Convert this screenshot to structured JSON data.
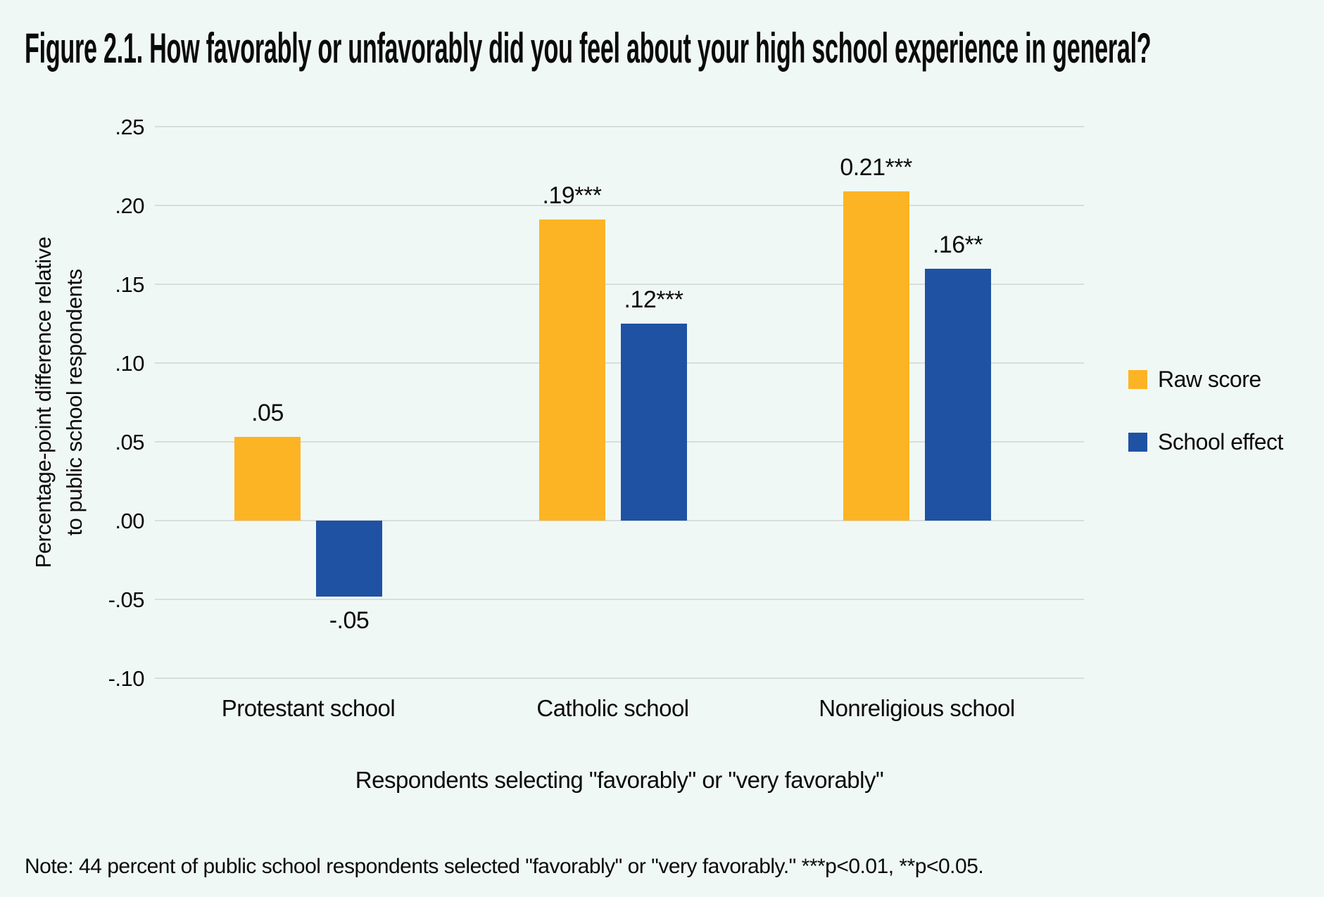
{
  "title": "Figure 2.1. How favorably or unfavorably did you feel about your high school experience in general?",
  "note": "Note: 44 percent of public school respondents selected \"favorably\" or \"very favorably.\" ***p<0.01, **p<0.05.",
  "colors": {
    "background": "#F0F8F6",
    "raw_score": "#FCB424",
    "school_effect": "#1F52A3",
    "gridline": "#D8DDDB",
    "text": "#0B0B0B"
  },
  "chart_data": {
    "type": "bar",
    "title": "Figure 2.1. How favorably or unfavorably did you feel about your high school experience in general?",
    "categories": [
      "Protestant school",
      "Catholic school",
      "Nonreligious school"
    ],
    "series": [
      {
        "name": "Raw score",
        "values": [
          0.053,
          0.191,
          0.209
        ],
        "labels": [
          ".05",
          ".19***",
          "0.21***"
        ],
        "color": "#FCB424"
      },
      {
        "name": "School effect",
        "values": [
          -0.048,
          0.125,
          0.16
        ],
        "labels": [
          "-.05",
          ".12***",
          ".16**"
        ],
        "color": "#1F52A3"
      }
    ],
    "ylabel_line1": "Percentage-point difference relative",
    "ylabel_line2": "to public school respondents",
    "xlabel": "Respondents selecting \"favorably\" or \"very favorably\"",
    "yticks": [
      0.25,
      0.2,
      0.15,
      0.1,
      0.05,
      0.0,
      -0.05,
      -0.1
    ],
    "ytick_labels": [
      ".25",
      ".20",
      ".15",
      ".10",
      ".05",
      ".00",
      "-.05",
      "-.10"
    ],
    "ylim": [
      -0.1,
      0.25
    ],
    "grid": true,
    "legend": [
      "Raw score",
      "School effect"
    ],
    "legend_position": "right"
  }
}
